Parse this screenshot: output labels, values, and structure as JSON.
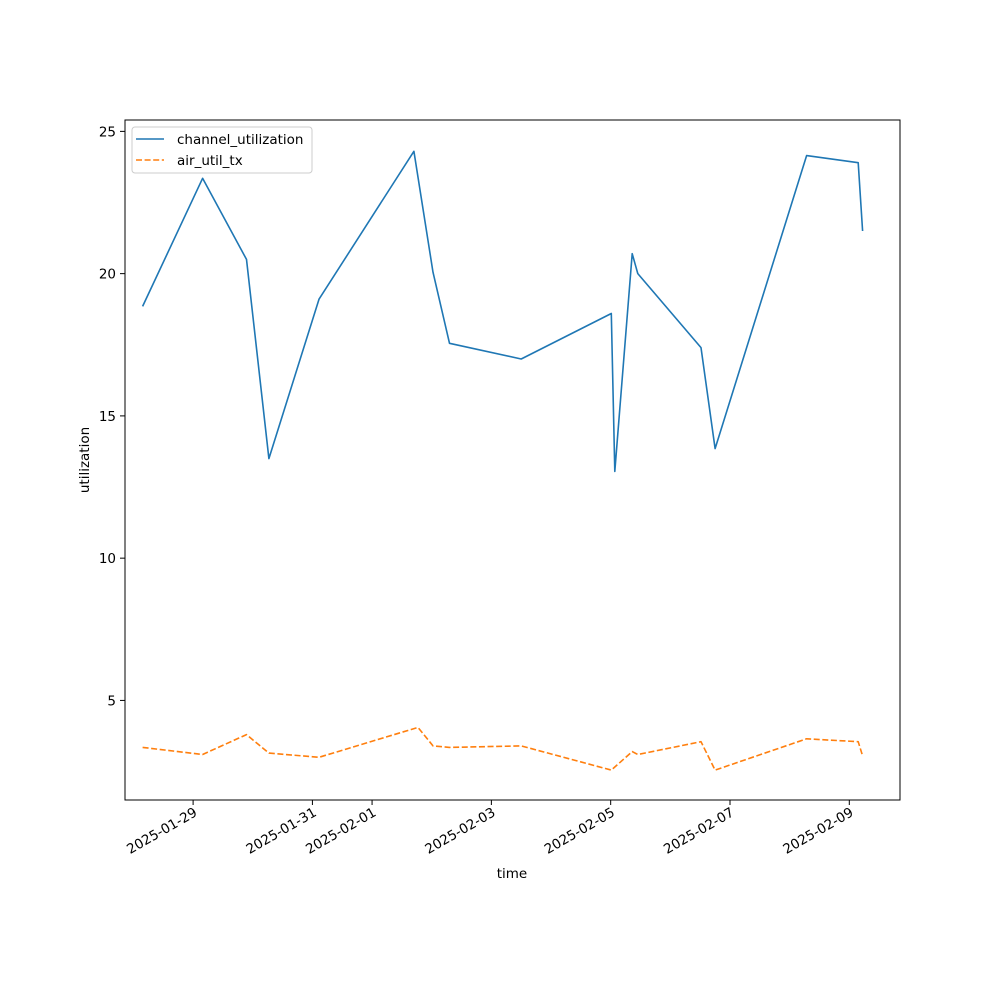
{
  "chart_data": {
    "type": "line",
    "title": "",
    "xlabel": "time",
    "ylabel": "utilization",
    "x_axis_type": "date",
    "xlim": [
      "2025-01-27T20:36",
      "2025-02-09T20:24"
    ],
    "ylim": [
      1.5,
      25.4
    ],
    "yticks": [
      5,
      10,
      15,
      20,
      25
    ],
    "ytick_labels": [
      "5",
      "10",
      "15",
      "20",
      "25"
    ],
    "xticks": [
      "2025-01-29",
      "2025-01-31",
      "2025-02-01",
      "2025-02-03",
      "2025-02-05",
      "2025-02-07",
      "2025-02-09"
    ],
    "xtick_labels": [
      "2025-01-29",
      "2025-01-31",
      "2025-02-01",
      "2025-02-03",
      "2025-02-05",
      "2025-02-07",
      "2025-02-09"
    ],
    "grid": false,
    "legend_position": "upper-left",
    "series": [
      {
        "name": "channel_utilization",
        "color": "#1f77b4",
        "line_style": "solid",
        "points": [
          {
            "x": "2025-01-28T03:40",
            "y": 18.85
          },
          {
            "x": "2025-01-29T03:50",
            "y": 23.35
          },
          {
            "x": "2025-01-29T21:30",
            "y": 20.5
          },
          {
            "x": "2025-01-30T06:30",
            "y": 13.5
          },
          {
            "x": "2025-01-31T02:40",
            "y": 19.1
          },
          {
            "x": "2025-02-01T16:50",
            "y": 24.3
          },
          {
            "x": "2025-02-02T00:30",
            "y": 20.05
          },
          {
            "x": "2025-02-02T07:10",
            "y": 17.55
          },
          {
            "x": "2025-02-03T12:00",
            "y": 17.0
          },
          {
            "x": "2025-02-05T00:15",
            "y": 18.6
          },
          {
            "x": "2025-02-05T01:40",
            "y": 13.05
          },
          {
            "x": "2025-02-05T08:40",
            "y": 20.7
          },
          {
            "x": "2025-02-05T10:55",
            "y": 20.0
          },
          {
            "x": "2025-02-06T12:20",
            "y": 17.4
          },
          {
            "x": "2025-02-06T18:00",
            "y": 13.85
          },
          {
            "x": "2025-02-08T06:50",
            "y": 24.15
          },
          {
            "x": "2025-02-09T03:35",
            "y": 23.9
          },
          {
            "x": "2025-02-09T05:20",
            "y": 21.5
          }
        ]
      },
      {
        "name": "air_util_tx",
        "color": "#ff7f0e",
        "line_style": "dashed",
        "points": [
          {
            "x": "2025-01-28T03:40",
            "y": 3.35
          },
          {
            "x": "2025-01-29T03:50",
            "y": 3.1
          },
          {
            "x": "2025-01-29T21:30",
            "y": 3.8
          },
          {
            "x": "2025-01-30T06:30",
            "y": 3.15
          },
          {
            "x": "2025-01-31T02:40",
            "y": 3.0
          },
          {
            "x": "2025-02-01T18:30",
            "y": 4.05
          },
          {
            "x": "2025-02-02T00:30",
            "y": 3.4
          },
          {
            "x": "2025-02-02T07:10",
            "y": 3.35
          },
          {
            "x": "2025-02-03T12:00",
            "y": 3.4
          },
          {
            "x": "2025-02-05T00:15",
            "y": 2.55
          },
          {
            "x": "2025-02-05T08:40",
            "y": 3.2
          },
          {
            "x": "2025-02-05T10:55",
            "y": 3.1
          },
          {
            "x": "2025-02-06T12:20",
            "y": 3.55
          },
          {
            "x": "2025-02-06T18:00",
            "y": 2.55
          },
          {
            "x": "2025-02-08T06:50",
            "y": 3.65
          },
          {
            "x": "2025-02-09T03:35",
            "y": 3.55
          },
          {
            "x": "2025-02-09T05:20",
            "y": 3.05
          }
        ]
      }
    ]
  }
}
